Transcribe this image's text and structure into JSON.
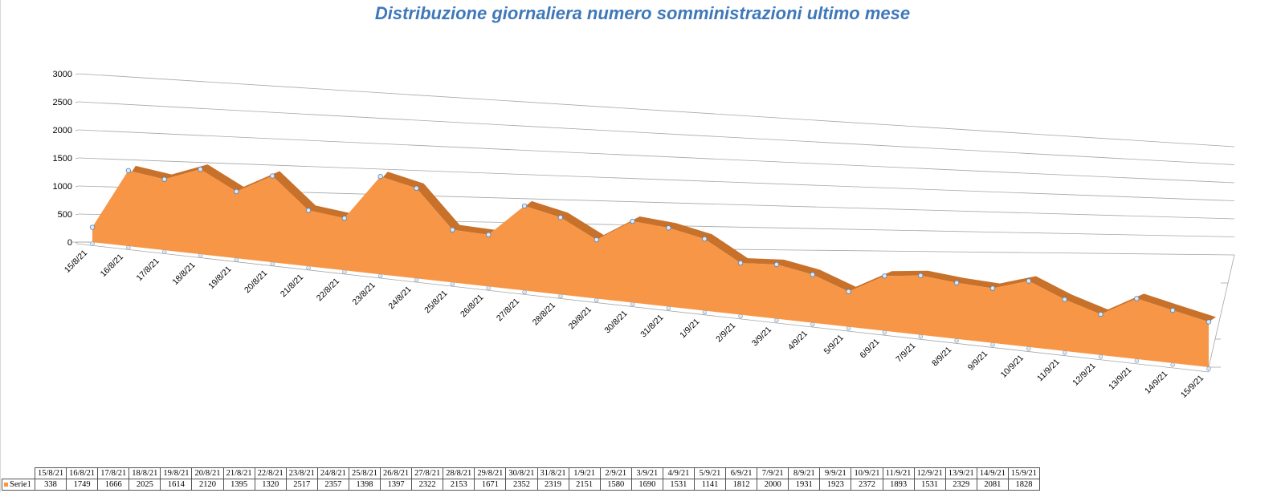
{
  "title": "Distribuzione giornaliera numero somministrazioni ultimo mese",
  "colors": {
    "area": "#f79646",
    "area_side": "#c8712a",
    "title": "#3f78b8",
    "grid": "#a6a6a6",
    "marker_fill": "#dbe9f5",
    "marker_stroke": "#4f81bd"
  },
  "chart_data": {
    "type": "area",
    "title": "Distribuzione giornaliera numero somministrazioni ultimo mese",
    "categories": [
      "15/8/21",
      "16/8/21",
      "17/8/21",
      "18/8/21",
      "19/8/21",
      "20/8/21",
      "21/8/21",
      "22/8/21",
      "23/8/21",
      "24/8/21",
      "25/8/21",
      "26/8/21",
      "27/8/21",
      "28/8/21",
      "29/8/21",
      "30/8/21",
      "31/8/21",
      "1/9/21",
      "2/9/21",
      "3/9/21",
      "4/9/21",
      "5/9/21",
      "6/9/21",
      "7/9/21",
      "8/9/21",
      "9/9/21",
      "10/9/21",
      "11/9/21",
      "12/9/21",
      "13/9/21",
      "14/9/21",
      "15/9/21"
    ],
    "series": [
      {
        "name": "Serie1",
        "values": [
          338,
          1749,
          1666,
          2025,
          1614,
          2120,
          1395,
          1320,
          2517,
          2357,
          1398,
          1397,
          2322,
          2153,
          1671,
          2352,
          2319,
          2151,
          1580,
          1690,
          1531,
          1141,
          1812,
          2000,
          1931,
          1923,
          2372,
          1893,
          1531,
          2329,
          2081,
          1828
        ]
      }
    ],
    "y_ticks": [
      "0",
      "500",
      "1000",
      "1500",
      "2000",
      "2500",
      "3000"
    ],
    "ylim": [
      0,
      3000
    ],
    "grid": true,
    "perspective": "3d",
    "legend": "data-table"
  },
  "table": {
    "series_label": "Serie1"
  }
}
